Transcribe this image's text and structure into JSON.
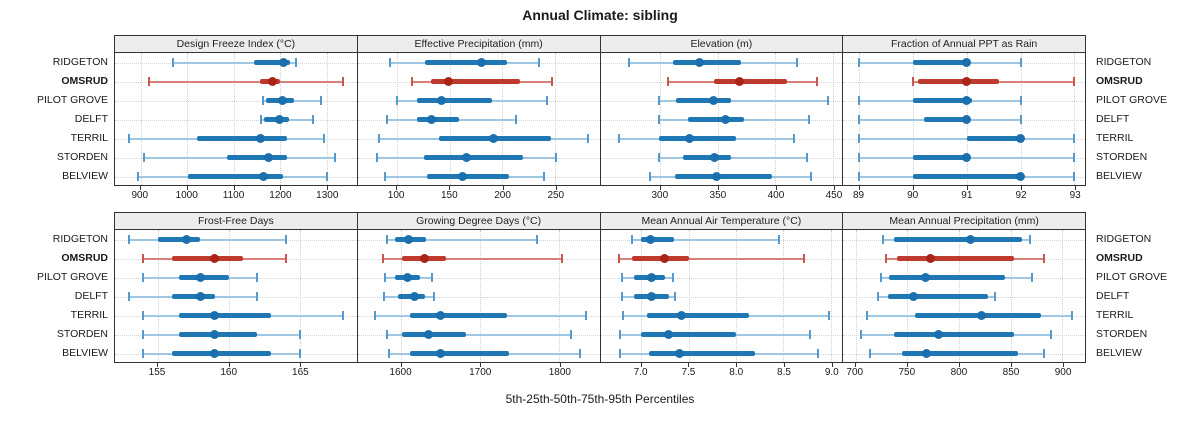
{
  "title": "Annual Climate: sibling",
  "caption": "5th-25th-50th-75th-95th Percentiles",
  "colors": {
    "blue_whisker": "#9fc6e2",
    "blue_cap": "#5699cc",
    "blue_iqr": "#1f77b4",
    "blue_dot": "#1b6fae",
    "red_whisker": "#d8817b",
    "red_cap": "#c8564e",
    "red_iqr": "#bf3a2e",
    "red_dot": "#a92317",
    "grid": "#cfcfcf",
    "header_bg": "#ededed",
    "border": "#333333"
  },
  "chart_data": {
    "type": "dotplot-percentiles",
    "title": "Annual Climate: sibling",
    "xlabel": "5th-25th-50th-75th-95th Percentiles",
    "percentiles": [
      "5th",
      "25th",
      "50th",
      "75th",
      "95th"
    ],
    "sites": [
      "RIDGETON",
      "OMSRUD",
      "PILOT GROVE",
      "DELFT",
      "TERRIL",
      "STORDEN",
      "BELVIEW"
    ],
    "highlight_site": "OMSRUD",
    "legend_position": "none",
    "grid": "dotted",
    "panels": [
      {
        "title": "Design Freeze Index (°C)",
        "row": 0,
        "domain": [
          845,
          1365
        ],
        "ticks": [
          900,
          1000,
          1100,
          1200,
          1300
        ],
        "tick_labels": [
          "900",
          "1000",
          "1100",
          "1200",
          "1300"
        ],
        "values": {
          "RIDGETON": [
            970,
            1145,
            1208,
            1222,
            1234
          ],
          "OMSRUD": [
            919,
            1156,
            1184,
            1201,
            1336
          ],
          "PILOT GROVE": [
            1164,
            1170,
            1205,
            1230,
            1289
          ],
          "DELFT": [
            1160,
            1166,
            1199,
            1219,
            1271
          ],
          "TERRIL": [
            876,
            1021,
            1157,
            1216,
            1294
          ],
          "STORDEN": [
            907,
            1085,
            1176,
            1216,
            1319
          ],
          "BELVIEW": [
            894,
            1003,
            1164,
            1207,
            1301
          ]
        }
      },
      {
        "title": "Effective Precipitation (mm)",
        "row": 0,
        "domain": [
          63,
          292
        ],
        "ticks": [
          100,
          150,
          200,
          250
        ],
        "tick_labels": [
          "100",
          "150",
          "200",
          "250"
        ],
        "values": {
          "RIDGETON": [
            94,
            127,
            180,
            204,
            235
          ],
          "OMSRUD": [
            114,
            132,
            149,
            217,
            247
          ],
          "PILOT GROVE": [
            100,
            119,
            142,
            190,
            242
          ],
          "DELFT": [
            91,
            119,
            133,
            159,
            213
          ],
          "TERRIL": [
            83,
            140,
            192,
            246,
            281
          ],
          "STORDEN": [
            81,
            126,
            166,
            220,
            251
          ],
          "BELVIEW": [
            89,
            129,
            162,
            206,
            239
          ]
        }
      },
      {
        "title": "Elevation (m)",
        "row": 0,
        "domain": [
          248,
          458
        ],
        "ticks": [
          300,
          350,
          400,
          450
        ],
        "tick_labels": [
          "300",
          "350",
          "400",
          "450"
        ],
        "values": {
          "RIDGETON": [
            273,
            311,
            334,
            370,
            419
          ],
          "OMSRUD": [
            307,
            347,
            369,
            410,
            436
          ],
          "PILOT GROVE": [
            299,
            314,
            346,
            361,
            446
          ],
          "DELFT": [
            299,
            324,
            357,
            373,
            429
          ],
          "TERRIL": [
            264,
            299,
            325,
            366,
            416
          ],
          "STORDEN": [
            299,
            320,
            347,
            361,
            427
          ],
          "BELVIEW": [
            291,
            313,
            349,
            397,
            431
          ]
        }
      },
      {
        "title": "Fraction of Annual PPT as Rain",
        "row": 0,
        "domain": [
          88.7,
          93.2
        ],
        "ticks": [
          89,
          90,
          91,
          92,
          93
        ],
        "tick_labels": [
          "89",
          "90",
          "91",
          "92",
          "93"
        ],
        "values": {
          "RIDGETON": [
            89,
            90,
            91,
            91,
            92
          ],
          "OMSRUD": [
            90,
            90.1,
            91,
            91.6,
            93
          ],
          "PILOT GROVE": [
            89,
            90,
            91,
            91.1,
            92
          ],
          "DELFT": [
            89,
            90.2,
            91,
            91,
            92
          ],
          "TERRIL": [
            89,
            91,
            92,
            92,
            93
          ],
          "STORDEN": [
            89,
            90,
            91,
            91,
            93
          ],
          "BELVIEW": [
            89,
            90,
            92,
            92,
            93
          ]
        }
      },
      {
        "title": "Frost-Free Days",
        "row": 1,
        "domain": [
          152,
          169
        ],
        "ticks": [
          155,
          160,
          165
        ],
        "tick_labels": [
          "155",
          "160",
          "165"
        ],
        "values": {
          "RIDGETON": [
            153,
            155,
            157,
            158,
            164
          ],
          "OMSRUD": [
            154,
            156,
            159,
            161,
            164
          ],
          "PILOT GROVE": [
            154,
            156.5,
            158,
            160,
            162
          ],
          "DELFT": [
            153,
            156,
            158,
            159,
            162
          ],
          "TERRIL": [
            154,
            156.5,
            159,
            163,
            168
          ],
          "STORDEN": [
            154,
            156.5,
            159,
            162,
            165
          ],
          "BELVIEW": [
            154,
            156,
            159,
            163,
            165
          ]
        }
      },
      {
        "title": "Growing Degree Days (°C)",
        "row": 1,
        "domain": [
          1545,
          1851
        ],
        "ticks": [
          1600,
          1700,
          1800
        ],
        "tick_labels": [
          "1600",
          "1700",
          "1800"
        ],
        "values": {
          "RIDGETON": [
            1582,
            1592,
            1609,
            1632,
            1772
          ],
          "OMSRUD": [
            1577,
            1601,
            1629,
            1657,
            1804
          ],
          "PILOT GROVE": [
            1579,
            1592,
            1608,
            1624,
            1639
          ],
          "DELFT": [
            1578,
            1596,
            1617,
            1630,
            1642
          ],
          "TERRIL": [
            1567,
            1611,
            1650,
            1734,
            1834
          ],
          "STORDEN": [
            1582,
            1601,
            1635,
            1682,
            1815
          ],
          "BELVIEW": [
            1585,
            1611,
            1650,
            1736,
            1826
          ]
        }
      },
      {
        "title": "Mean Annual Air Temperature (°C)",
        "row": 1,
        "domain": [
          6.57,
          9.12
        ],
        "ticks": [
          7.0,
          7.5,
          8.0,
          8.5,
          9.0
        ],
        "tick_labels": [
          "7.0",
          "7.5",
          "8.0",
          "8.5",
          "9.0"
        ],
        "values": {
          "RIDGETON": [
            6.9,
            7.0,
            7.1,
            7.35,
            8.45
          ],
          "OMSRUD": [
            6.77,
            6.9,
            7.25,
            7.5,
            8.72
          ],
          "PILOT GROVE": [
            6.8,
            6.92,
            7.11,
            7.25,
            7.34
          ],
          "DELFT": [
            6.8,
            6.92,
            7.11,
            7.29,
            7.36
          ],
          "TERRIL": [
            6.81,
            7.06,
            7.42,
            8.14,
            8.98
          ],
          "STORDEN": [
            6.78,
            7.0,
            7.29,
            8.0,
            8.78
          ],
          "BELVIEW": [
            6.78,
            7.08,
            7.4,
            8.2,
            8.86
          ]
        }
      },
      {
        "title": "Mean Annual Precipitation (mm)",
        "row": 1,
        "domain": [
          688,
          922
        ],
        "ticks": [
          700,
          750,
          800,
          850,
          900
        ],
        "tick_labels": [
          "700",
          "750",
          "800",
          "850",
          "900"
        ],
        "values": {
          "RIDGETON": [
            726,
            737,
            811,
            861,
            869
          ],
          "OMSRUD": [
            729,
            740,
            772,
            853,
            882
          ],
          "PILOT GROVE": [
            725,
            732,
            768,
            845,
            871
          ],
          "DELFT": [
            722,
            731,
            756,
            828,
            835
          ],
          "TERRIL": [
            711,
            757,
            822,
            879,
            909
          ],
          "STORDEN": [
            705,
            737,
            780,
            853,
            889
          ],
          "BELVIEW": [
            714,
            745,
            769,
            857,
            882
          ]
        }
      }
    ]
  }
}
